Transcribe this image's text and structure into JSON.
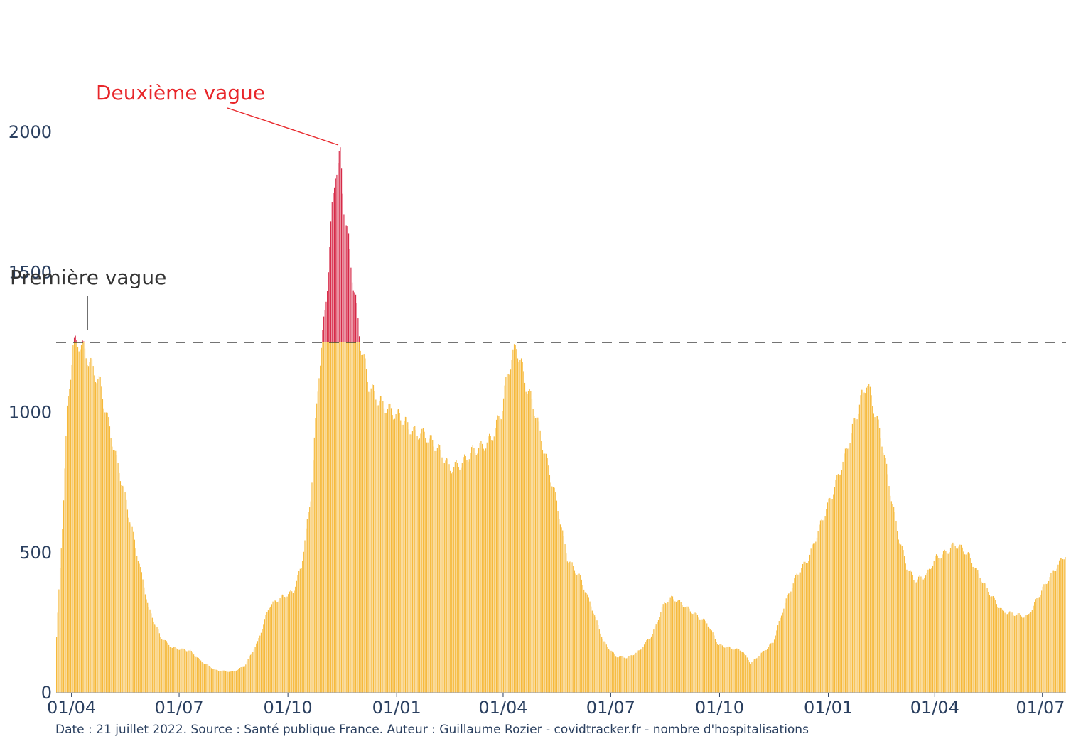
{
  "chart_data": {
    "type": "bar",
    "colors": {
      "base": "#f6b93b",
      "excess": "#d62846",
      "threshold_line": "#222222",
      "annotation_red": "#e8262a",
      "annotation_dark": "#333333",
      "axis_text": "#2a3f5f"
    },
    "x_ticks": [
      "01/04",
      "01/07",
      "01/10",
      "01/01",
      "01/04",
      "01/07",
      "01/10",
      "01/01",
      "01/04",
      "01/07"
    ],
    "x_tick_dates": [
      "2020-04-01",
      "2020-07-01",
      "2020-10-01",
      "2021-01-01",
      "2021-04-01",
      "2021-07-01",
      "2021-10-01",
      "2022-01-01",
      "2022-04-01",
      "2022-07-01"
    ],
    "x_range": [
      "2020-03-19",
      "2022-07-21"
    ],
    "y_ticks": [
      "0",
      "500",
      "1000",
      "1500",
      "2000"
    ],
    "y_tick_values": [
      0,
      500,
      1000,
      1500,
      2000
    ],
    "ylim": [
      0,
      2000
    ],
    "threshold": 1250,
    "keypoints": [
      [
        "2020-03-19",
        200
      ],
      [
        "2020-03-24",
        600
      ],
      [
        "2020-03-28",
        1000
      ],
      [
        "2020-04-02",
        1240
      ],
      [
        "2020-04-08",
        1250
      ],
      [
        "2020-04-16",
        1180
      ],
      [
        "2020-04-25",
        1100
      ],
      [
        "2020-05-05",
        900
      ],
      [
        "2020-05-15",
        720
      ],
      [
        "2020-05-25",
        520
      ],
      [
        "2020-06-05",
        300
      ],
      [
        "2020-06-15",
        200
      ],
      [
        "2020-06-25",
        160
      ],
      [
        "2020-07-10",
        150
      ],
      [
        "2020-07-20",
        110
      ],
      [
        "2020-08-01",
        80
      ],
      [
        "2020-08-15",
        75
      ],
      [
        "2020-08-25",
        95
      ],
      [
        "2020-09-05",
        180
      ],
      [
        "2020-09-15",
        310
      ],
      [
        "2020-09-25",
        340
      ],
      [
        "2020-10-05",
        360
      ],
      [
        "2020-10-12",
        450
      ],
      [
        "2020-10-20",
        700
      ],
      [
        "2020-10-27",
        1150
      ],
      [
        "2020-11-01",
        1350
      ],
      [
        "2020-11-06",
        1650
      ],
      [
        "2020-11-10",
        1880
      ],
      [
        "2020-11-14",
        1900
      ],
      [
        "2020-11-18",
        1700
      ],
      [
        "2020-11-24",
        1500
      ],
      [
        "2020-12-01",
        1250
      ],
      [
        "2020-12-08",
        1100
      ],
      [
        "2020-12-15",
        1050
      ],
      [
        "2020-12-25",
        1010
      ],
      [
        "2021-01-05",
        980
      ],
      [
        "2021-01-15",
        930
      ],
      [
        "2021-01-25",
        920
      ],
      [
        "2021-02-05",
        870
      ],
      [
        "2021-02-15",
        800
      ],
      [
        "2021-02-25",
        820
      ],
      [
        "2021-03-05",
        860
      ],
      [
        "2021-03-15",
        880
      ],
      [
        "2021-03-22",
        910
      ],
      [
        "2021-03-30",
        1000
      ],
      [
        "2021-04-05",
        1150
      ],
      [
        "2021-04-12",
        1240
      ],
      [
        "2021-04-20",
        1100
      ],
      [
        "2021-04-28",
        1000
      ],
      [
        "2021-05-05",
        870
      ],
      [
        "2021-05-15",
        700
      ],
      [
        "2021-05-25",
        480
      ],
      [
        "2021-06-05",
        410
      ],
      [
        "2021-06-15",
        300
      ],
      [
        "2021-06-25",
        180
      ],
      [
        "2021-07-05",
        130
      ],
      [
        "2021-07-15",
        125
      ],
      [
        "2021-07-25",
        150
      ],
      [
        "2021-08-05",
        210
      ],
      [
        "2021-08-15",
        320
      ],
      [
        "2021-08-22",
        340
      ],
      [
        "2021-09-01",
        310
      ],
      [
        "2021-09-10",
        280
      ],
      [
        "2021-09-20",
        250
      ],
      [
        "2021-09-30",
        170
      ],
      [
        "2021-10-10",
        160
      ],
      [
        "2021-10-20",
        150
      ],
      [
        "2021-10-27",
        105
      ],
      [
        "2021-11-05",
        140
      ],
      [
        "2021-11-15",
        180
      ],
      [
        "2021-11-25",
        320
      ],
      [
        "2021-12-05",
        420
      ],
      [
        "2021-12-15",
        480
      ],
      [
        "2021-12-25",
        600
      ],
      [
        "2022-01-05",
        720
      ],
      [
        "2022-01-15",
        850
      ],
      [
        "2022-01-25",
        1000
      ],
      [
        "2022-02-02",
        1110
      ],
      [
        "2022-02-08",
        1020
      ],
      [
        "2022-02-15",
        900
      ],
      [
        "2022-02-22",
        720
      ],
      [
        "2022-03-01",
        560
      ],
      [
        "2022-03-08",
        450
      ],
      [
        "2022-03-15",
        400
      ],
      [
        "2022-03-25",
        420
      ],
      [
        "2022-04-01",
        480
      ],
      [
        "2022-04-10",
        500
      ],
      [
        "2022-04-18",
        530
      ],
      [
        "2022-04-28",
        500
      ],
      [
        "2022-05-08",
        420
      ],
      [
        "2022-05-18",
        350
      ],
      [
        "2022-05-28",
        290
      ],
      [
        "2022-06-08",
        280
      ],
      [
        "2022-06-18",
        270
      ],
      [
        "2022-06-28",
        350
      ],
      [
        "2022-07-08",
        420
      ],
      [
        "2022-07-21",
        500
      ]
    ]
  },
  "annotations": {
    "second_wave": "Deuxième vague",
    "first_wave": "Première vague"
  },
  "source": "Date : 21 juillet 2022. Source : Santé publique France. Auteur : Guillaume Rozier - covidtracker.fr - nombre d'hospitalisations"
}
